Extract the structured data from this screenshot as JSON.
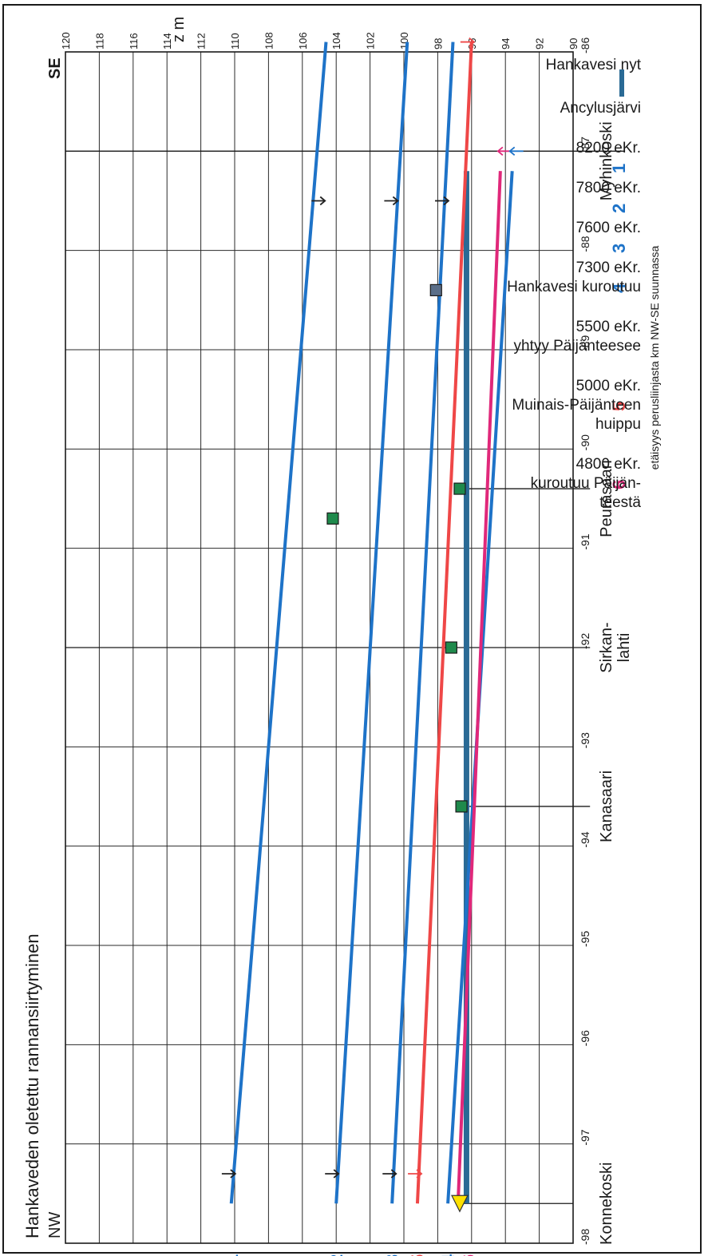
{
  "chart_data": {
    "type": "line",
    "title": "Hankaveden oletettu rannansiirtyminen",
    "orientation_labels": {
      "start": "NW",
      "end": "SE"
    },
    "xlabel": "etäisyys perusliinjasta km NW-SE suunnassa",
    "ylabel": "z m",
    "x_ticks": [
      "-98",
      "-97",
      "-96",
      "-95",
      "-94",
      "-93",
      "-92",
      "-91",
      "-90",
      "-89",
      "-88",
      "-87",
      "-86"
    ],
    "y_ticks": [
      "90",
      "92",
      "94",
      "96",
      "98",
      "100",
      "102",
      "104",
      "106",
      "108",
      "110",
      "112",
      "114",
      "116",
      "118",
      "120"
    ],
    "xlim": [
      -98,
      -86
    ],
    "ylim": [
      90,
      120
    ],
    "grid": true,
    "legend_position": "right",
    "colors": {
      "blue": "#1e73c8",
      "red": "#ef4747",
      "pink": "#e0287a",
      "teal": "#2a6a95",
      "green": "#1f8a4c",
      "yellow": "#ffe100"
    },
    "series": [
      {
        "name": "Hankavesi nyt",
        "color": "#2a6a95",
        "x": [
          -97.6,
          -87.2
        ],
        "y": [
          96.3,
          96.3
        ]
      },
      {
        "name": "1",
        "color": "#1e73c8",
        "x": [
          -97.6,
          -85.9
        ],
        "y": [
          110.2,
          104.6
        ]
      },
      {
        "name": "2",
        "color": "#1e73c8",
        "x": [
          -97.6,
          -85.9
        ],
        "y": [
          104.0,
          99.8
        ]
      },
      {
        "name": "3",
        "color": "#1e73c8",
        "x": [
          -97.6,
          -85.9
        ],
        "y": [
          100.7,
          97.1
        ]
      },
      {
        "name": "4",
        "color": "#1e73c8",
        "x": [
          -97.6,
          -87.2
        ],
        "y": [
          97.4,
          93.6
        ]
      },
      {
        "name": "5",
        "color": "#ef4747",
        "x": [
          -97.6,
          -85.9
        ],
        "y": [
          99.2,
          96.0
        ]
      },
      {
        "name": "6",
        "color": "#e0287a",
        "x": [
          -97.6,
          -87.2
        ],
        "y": [
          96.8,
          94.3
        ]
      }
    ],
    "arrows": [
      {
        "x": -97.3,
        "y": 110.1,
        "dir": "down",
        "color": "#222222"
      },
      {
        "x": -97.3,
        "y": 104.0,
        "dir": "down",
        "color": "#222222"
      },
      {
        "x": -97.3,
        "y": 100.6,
        "dir": "down",
        "color": "#222222"
      },
      {
        "x": -97.3,
        "y": 99.1,
        "dir": "down",
        "color": "#ef4747"
      },
      {
        "x": -87.5,
        "y": 104.8,
        "dir": "down",
        "color": "#222222"
      },
      {
        "x": -87.5,
        "y": 100.5,
        "dir": "down",
        "color": "#222222"
      },
      {
        "x": -87.5,
        "y": 97.5,
        "dir": "down",
        "color": "#222222"
      },
      {
        "x": -87.0,
        "y": 94.3,
        "dir": "up",
        "color": "#e0287a"
      },
      {
        "x": -87.0,
        "y": 93.6,
        "dir": "up",
        "color": "#1e73c8"
      },
      {
        "x": -85.9,
        "y": 96.0,
        "dir": "down",
        "color": "#ef4747"
      }
    ],
    "points": [
      {
        "x": -90.7,
        "y": 104.2,
        "marker": "square",
        "color": "#1f8a4c"
      },
      {
        "x": -90.4,
        "y": 96.7,
        "marker": "square",
        "color": "#1f8a4c"
      },
      {
        "x": -92.0,
        "y": 97.2,
        "marker": "square",
        "color": "#1f8a4c"
      },
      {
        "x": -93.6,
        "y": 96.6,
        "marker": "square",
        "color": "#1f8a4c"
      },
      {
        "x": -88.4,
        "y": 98.1,
        "marker": "square",
        "color": "#5a6e88"
      },
      {
        "x": -97.6,
        "y": 96.7,
        "marker": "triangle",
        "color": "#ffe100"
      }
    ],
    "vertical_markers": [
      {
        "x": -97.6,
        "y_top": 96.5,
        "y_bottom": 90.0
      },
      {
        "x": -93.6,
        "y_top": 96.5,
        "y_bottom": 89.0
      },
      {
        "x": -92.0,
        "y_top": 120.0,
        "y_bottom": 89.0
      },
      {
        "x": -90.4,
        "y_top": 96.5,
        "y_bottom": 89.0
      },
      {
        "x": -87.0,
        "y_top": 120.0,
        "y_bottom": 87.0
      }
    ],
    "locations": [
      {
        "x": -97.6,
        "label": "Konnekoski"
      },
      {
        "x": -93.6,
        "label": "Kanasaari"
      },
      {
        "x": -92.0,
        "label": "Sirkan-\nlahti"
      },
      {
        "x": -90.5,
        "label": "Peurasaari"
      },
      {
        "x": -87.1,
        "label": "Myhinkoski"
      }
    ],
    "line_end_labels": [
      {
        "y": 110.2,
        "text": "1",
        "color": "#1e73c8"
      },
      {
        "y": 104.0,
        "text": "2",
        "color": "#1e73c8"
      },
      {
        "y": 100.7,
        "text": "3",
        "color": "#1e73c8"
      },
      {
        "y": 99.2,
        "text": "5",
        "color": "#ef4747"
      },
      {
        "y": 97.4,
        "text": "4",
        "color": "#1e73c8"
      },
      {
        "y": 96.2,
        "text": "6",
        "color": "#e0287a"
      }
    ],
    "legend": [
      {
        "symbol": "bar",
        "color": "#2a6a95",
        "lines": [
          "Hankavesi nyt"
        ]
      },
      {
        "symbol": "",
        "color": "#1e73c8",
        "lines": [
          "Ancylusjärvi"
        ]
      },
      {
        "symbol": "1",
        "color": "#1e73c8",
        "lines": [
          "8200 eKr."
        ]
      },
      {
        "symbol": "2",
        "color": "#1e73c8",
        "lines": [
          "7800 eKr."
        ]
      },
      {
        "symbol": "3",
        "color": "#1e73c8",
        "lines": [
          "7600 eKr."
        ]
      },
      {
        "symbol": "4",
        "color": "#1e73c8",
        "lines": [
          "7300 eKr.",
          "Hankavesi kuroutuu"
        ]
      },
      {
        "symbol": "",
        "color": "#1e73c8",
        "lines": [
          "5500 eKr.",
          "yhtyy Päijänteesee"
        ]
      },
      {
        "symbol": "5",
        "color": "#ef4747",
        "lines": [
          "5000 eKr.",
          "Muinais-Päijänteen",
          "huippu"
        ]
      },
      {
        "symbol": "6",
        "color": "#e0287a",
        "lines": [
          "4800 eKr.",
          "kuroutuu Päijän-",
          "teestä"
        ]
      }
    ]
  }
}
